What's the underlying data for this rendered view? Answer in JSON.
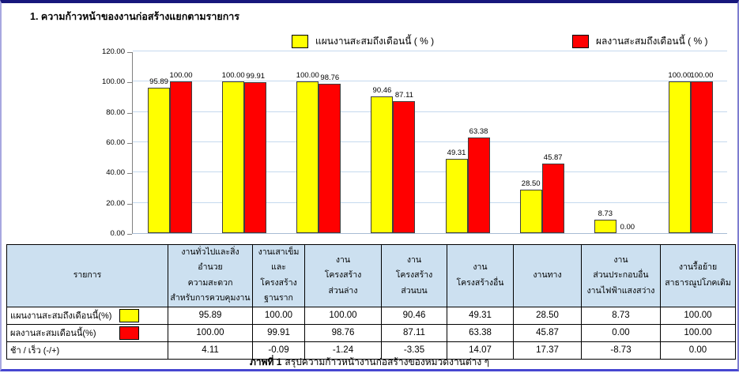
{
  "document": {
    "title": "1. ความก้าวหน้าของงานก่อสร้างแยกตามรายการ",
    "caption": {
      "prefix": "ภาพที่ 1",
      "text": "สรุปความก้าวหน้างานก่อสร้างของหมวดงานต่าง ๆ"
    }
  },
  "legend": {
    "plan_label": "แผนงานสะสมถึงเดือนนี้ ( % )",
    "actual_label": "ผลงานสะสมถึงเดือนนี้ ( % )"
  },
  "colors": {
    "plan": "#ffff00",
    "actual": "#ff0000",
    "gridline": "#c5d9ee",
    "axis": "#808080",
    "table_header_bg": "#cce0f0",
    "frame_top": "#17177c",
    "frame_bottom": "#4646d0"
  },
  "chart_data": {
    "type": "bar",
    "title": "1. ความก้าวหน้าของงานก่อสร้างแยกตามรายการ",
    "categories": [
      "งานทั่วไปและสิ่งอำนวยความสะดวกสำหรับการควบคุมงาน",
      "งานเสาเข็มและโครงสร้างฐานราก",
      "งานโครงสร้างส่วนล่าง",
      "งานโครงสร้างส่วนบน",
      "งานโครงสร้างอื่น",
      "งานทาง",
      "งานส่วนประกอบอื่น งานไฟฟ้าแสงสว่าง",
      "งานรื้อย้ายสาธารณูปโภคเดิม"
    ],
    "series": [
      {
        "name": "แผนงานสะสมถึงเดือนนี้ ( % )",
        "color": "#ffff00",
        "values": [
          95.89,
          100.0,
          100.0,
          90.46,
          49.31,
          28.5,
          8.73,
          100.0
        ]
      },
      {
        "name": "ผลงานสะสมถึงเดือนนี้ ( % )",
        "color": "#ff0000",
        "values": [
          100.0,
          99.91,
          98.76,
          87.11,
          63.38,
          45.87,
          0.0,
          100.0
        ]
      }
    ],
    "ylim": [
      0,
      120
    ],
    "ytick_step": 20,
    "grid": true,
    "legend_position": "top",
    "value_labels": true,
    "value_label_decimals": 2
  },
  "table": {
    "item_header": "รายการ",
    "column_headers": [
      "งานทั่วไปและสิ่งอำนวย\nความสะดวก\nสำหรับการควบคุมงาน",
      "งานเสาเข็ม\nและโครงสร้าง\nฐานราก",
      "งาน\nโครงสร้าง\nส่วนล่าง",
      "งาน\nโครงสร้าง\nส่วนบน",
      "งาน\nโครงสร้างอื่น",
      "งานทาง",
      "งาน\nส่วนประกอบอื่น\nงานไฟฟ้าแสงสว่าง",
      "งานรื้อย้าย\nสาธารณูปโภคเดิม"
    ],
    "rows": [
      {
        "label": "แผนงานสะสมถึงเดือนนี้(%)",
        "swatch_color": "#ffff00",
        "values": [
          "95.89",
          "100.00",
          "100.00",
          "90.46",
          "49.31",
          "28.50",
          "8.73",
          "100.00"
        ]
      },
      {
        "label": "ผลงานสะสมเดือนนี้(%)",
        "swatch_color": "#ff0000",
        "values": [
          "100.00",
          "99.91",
          "98.76",
          "87.11",
          "63.38",
          "45.87",
          "0.00",
          "100.00"
        ]
      },
      {
        "label": "ช้า / เร็ว  (-/+)",
        "swatch_color": null,
        "values": [
          "4.11",
          "-0.09",
          "-1.24",
          "-3.35",
          "14.07",
          "17.37",
          "-8.73",
          "0.00"
        ]
      }
    ]
  }
}
